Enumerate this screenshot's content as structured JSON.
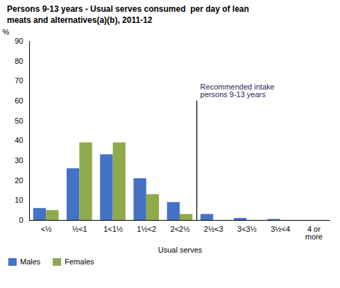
{
  "chart_data": {
    "type": "bar",
    "title": "Persons 9-13 years - Usual serves consumed  per day of lean\nmeats and alternatives(a)(b), 2011-12",
    "categories": [
      "<½",
      "½<1",
      "1<1½",
      "1½<2",
      "2<2½",
      "2½<3",
      "3<3½",
      "3½<4",
      "4 or\nmore"
    ],
    "series": [
      {
        "name": "Males",
        "color": "#4472c4",
        "values": [
          6,
          26,
          33,
          21,
          9,
          3,
          1,
          0.5,
          0
        ]
      },
      {
        "name": "Females",
        "color": "#8faa4b",
        "values": [
          5,
          39,
          39,
          13,
          3,
          0,
          0,
          0,
          0
        ]
      }
    ],
    "xlabel": "Usual serves",
    "ylabel": "%",
    "ylim": [
      0,
      90
    ],
    "yticks": [
      0,
      10,
      20,
      30,
      40,
      50,
      60,
      70,
      80,
      90
    ],
    "grid": false,
    "legend": "lower left",
    "annotations": [
      {
        "text": "Recommended intake\npersons 9-13 years",
        "color": "#1f1f5e",
        "between": [
          "2<2½",
          "2½<3"
        ],
        "y": 60
      }
    ]
  }
}
